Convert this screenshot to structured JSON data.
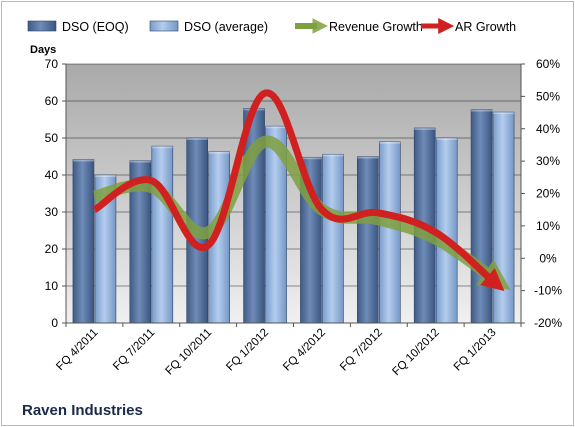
{
  "chart_data": {
    "type": "bar",
    "title": "Raven Industries",
    "ylabel": "Days",
    "xlabel": "",
    "categories": [
      "FQ 4/2011",
      "FQ 7/2011",
      "FQ 10/2011",
      "FQ 1/2012",
      "FQ 4/2012",
      "FQ 7/2012",
      "FQ 10/2012",
      "FQ 1/2013"
    ],
    "ylim": [
      0,
      70
    ],
    "yticks": [
      "0",
      "10",
      "20",
      "30",
      "40",
      "50",
      "60",
      "70"
    ],
    "y2lim": [
      -0.2,
      0.6
    ],
    "y2ticks": [
      "-20%",
      "-10%",
      "0%",
      "10%",
      "20%",
      "30%",
      "40%",
      "50%",
      "60%"
    ],
    "grid": true,
    "legend_position": "top",
    "series": [
      {
        "name": "DSO (EOQ)",
        "type": "bar",
        "axis": "left",
        "color": "#4f6b96",
        "values": [
          44.2,
          43.9,
          50.0,
          58.0,
          44.8,
          45.0,
          52.7,
          57.7
        ]
      },
      {
        "name": "DSO (average)",
        "type": "bar",
        "axis": "left",
        "color": "#8fb0da",
        "values": [
          40.0,
          47.8,
          46.3,
          53.2,
          45.6,
          49.0,
          50.0,
          57.0
        ]
      },
      {
        "name": "Revenue Growth",
        "type": "line",
        "axis": "right",
        "color": "#7fa040",
        "values": [
          0.19,
          0.22,
          0.08,
          0.36,
          0.15,
          0.12,
          0.06,
          -0.06
        ]
      },
      {
        "name": "AR Growth",
        "type": "line",
        "axis": "right",
        "color": "#d02020",
        "values": [
          0.15,
          0.24,
          0.04,
          0.51,
          0.15,
          0.14,
          0.08,
          -0.07
        ]
      }
    ]
  }
}
